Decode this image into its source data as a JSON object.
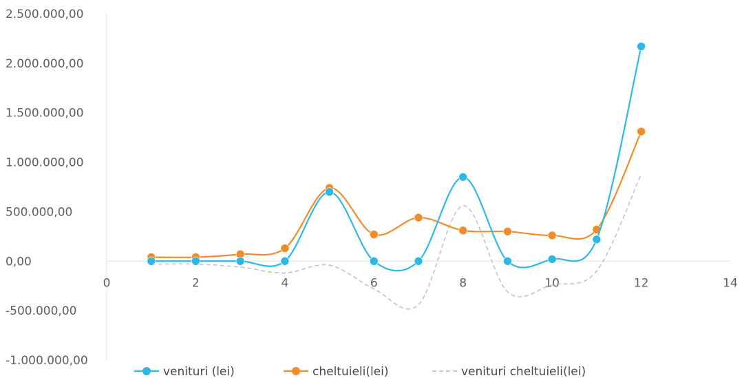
{
  "chart_data": {
    "type": "scatter",
    "title": "",
    "xlabel": "",
    "ylabel": "",
    "xlim": [
      0,
      14
    ],
    "ylim": [
      -1000000,
      2500000
    ],
    "x_ticks": [
      "0",
      "2",
      "4",
      "6",
      "8",
      "10",
      "12",
      "14"
    ],
    "y_ticks": [
      "2.500.000,00",
      "2.000.000,00",
      "1.500.000,00",
      "1.000.000,00",
      "500.000,00",
      "0,00",
      "-500.000,00",
      "-1.000.000,00"
    ],
    "grid": false,
    "smooth": true,
    "legend_position": "bottom",
    "series": [
      {
        "name": "venituri (lei)",
        "color": "#2eb8e8",
        "markers": true,
        "points": [
          [
            1,
            0
          ],
          [
            2,
            0
          ],
          [
            3,
            0
          ],
          [
            4,
            0
          ],
          [
            5,
            700000
          ],
          [
            6,
            0
          ],
          [
            7,
            0
          ],
          [
            8,
            850000
          ],
          [
            9,
            0
          ],
          [
            10,
            20000
          ],
          [
            11,
            220000
          ],
          [
            12,
            2170000
          ]
        ]
      },
      {
        "name": "cheltuieli(lei)",
        "color": "#f28c28",
        "markers": true,
        "points": [
          [
            1,
            40000
          ],
          [
            2,
            40000
          ],
          [
            3,
            70000
          ],
          [
            4,
            130000
          ],
          [
            5,
            740000
          ],
          [
            6,
            270000
          ],
          [
            7,
            440000
          ],
          [
            8,
            310000
          ],
          [
            9,
            300000
          ],
          [
            10,
            260000
          ],
          [
            11,
            320000
          ],
          [
            12,
            1310000
          ]
        ]
      },
      {
        "name": "venituri cheltuieli(lei)",
        "color": "#b8b8b8",
        "markers": false,
        "points": [
          [
            1,
            -30000
          ],
          [
            2,
            -30000
          ],
          [
            3,
            -60000
          ],
          [
            4,
            -120000
          ],
          [
            5,
            -40000
          ],
          [
            6,
            -280000
          ],
          [
            7,
            -440000
          ],
          [
            8,
            560000
          ],
          [
            9,
            -310000
          ],
          [
            10,
            -240000
          ],
          [
            11,
            -100000
          ],
          [
            12,
            880000
          ]
        ]
      }
    ]
  }
}
